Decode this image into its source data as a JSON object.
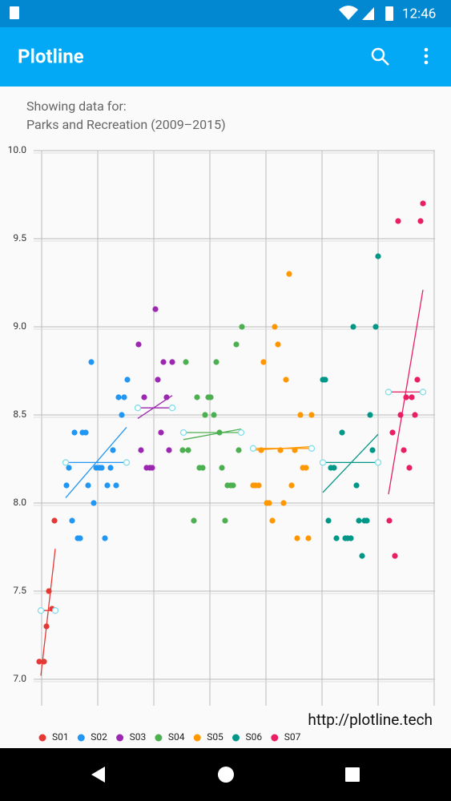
{
  "status_bar": {
    "time": "12:46"
  },
  "app_bar": {
    "title": "Plotline"
  },
  "header": {
    "line1": "Showing data for:",
    "line2": "Parks and Recreation (2009–2015)"
  },
  "watermark": "http://plotline.tech",
  "chart_data": {
    "type": "scatter",
    "xlim": [
      -10,
      491
    ],
    "xticks": [
      0,
      70,
      140,
      210,
      280,
      350,
      420,
      490
    ],
    "ylim": [
      6.85,
      10.0
    ],
    "yticks": [
      {
        "value": 7,
        "label": "7.0"
      },
      {
        "value": 7.5,
        "label": "7.5"
      },
      {
        "value": 8,
        "label": "8.0"
      },
      {
        "value": 8.5,
        "label": "8.5"
      },
      {
        "value": 9,
        "label": "9.0"
      },
      {
        "value": 9.5,
        "label": "9.5"
      },
      {
        "value": 10,
        "label": "10.0"
      }
    ],
    "grid": true,
    "series": [
      {
        "name": "S01",
        "color": "#e53935",
        "x": [
          -3,
          3,
          6,
          9,
          13,
          16
        ],
        "values": [
          7.1,
          7.1,
          7.3,
          7.5,
          7.4,
          7.9
        ],
        "mean": 7.39,
        "trend": [
          7.02,
          7.74
        ],
        "fit_x": [
          -1,
          17
        ]
      },
      {
        "name": "S02",
        "color": "#2196f3",
        "x": [
          31,
          34,
          38,
          41,
          45,
          48,
          51,
          55,
          58,
          62,
          65,
          68,
          72,
          75,
          79,
          82,
          86,
          89,
          93,
          96,
          100,
          103,
          107
        ],
        "values": [
          8.1,
          8.2,
          7.9,
          8.4,
          7.8,
          7.8,
          8.4,
          8.4,
          8.1,
          8.8,
          8.0,
          8.2,
          8.2,
          8.2,
          7.8,
          8.1,
          8.2,
          8.3,
          8.1,
          8.6,
          8.5,
          8.6,
          8.7
        ],
        "mean": 8.23,
        "trend": [
          8.03,
          8.43
        ],
        "fit_x": [
          30,
          106
        ]
      },
      {
        "name": "S03",
        "color": "#9c27b0",
        "x": [
          121,
          124,
          128,
          131,
          135,
          138,
          142,
          145,
          149,
          152,
          156,
          159,
          163
        ],
        "values": [
          8.9,
          8.3,
          8.6,
          8.2,
          8.2,
          8.2,
          9.1,
          8.7,
          8.4,
          8.8,
          8.6,
          8.3,
          8.8
        ],
        "mean": 8.54,
        "trend": [
          8.48,
          8.61
        ],
        "fit_x": [
          120,
          163
        ]
      },
      {
        "name": "S04",
        "color": "#4caf50",
        "x": [
          176,
          180,
          183,
          190,
          194,
          197,
          201,
          204,
          208,
          211,
          215,
          218,
          222,
          225,
          229,
          232,
          236,
          239,
          243,
          246,
          250
        ],
        "values": [
          8.3,
          8.8,
          8.3,
          7.9,
          8.6,
          8.2,
          8.2,
          8.5,
          8.6,
          8.6,
          8.5,
          8.8,
          8.4,
          8.2,
          7.9,
          8.1,
          8.1,
          8.1,
          8.9,
          8.3,
          9.0
        ],
        "mean": 8.4,
        "trend": [
          8.36,
          8.42
        ],
        "fit_x": [
          177,
          249
        ]
      },
      {
        "name": "S05",
        "color": "#ff9800",
        "x": [
          264,
          267,
          271,
          274,
          277,
          281,
          284,
          288,
          291,
          295,
          298,
          302,
          305,
          309,
          312,
          316,
          319,
          323,
          326,
          330,
          333,
          337
        ],
        "values": [
          8.1,
          8.1,
          8.1,
          8.3,
          8.8,
          8.0,
          8.0,
          7.9,
          9.0,
          8.9,
          8.3,
          8.0,
          8.7,
          9.3,
          8.1,
          8.3,
          7.8,
          8.5,
          8.2,
          8.2,
          7.8,
          8.5
        ],
        "mean": 8.31,
        "trend": [
          8.3,
          8.32
        ],
        "fit_x": [
          264,
          337
        ]
      },
      {
        "name": "S06",
        "color": "#009688",
        "x": [
          351,
          354,
          358,
          361,
          365,
          368,
          375,
          379,
          382,
          386,
          389,
          393,
          396,
          400,
          403,
          406,
          410,
          413,
          417,
          420
        ],
        "values": [
          8.7,
          8.7,
          7.9,
          8.2,
          8.2,
          7.8,
          8.4,
          7.8,
          7.8,
          7.8,
          9.0,
          8.1,
          7.9,
          7.7,
          7.9,
          7.9,
          8.5,
          8.3,
          9.0,
          9.4
        ],
        "mean": 8.23,
        "trend": [
          8.06,
          8.39
        ],
        "fit_x": [
          351,
          420
        ]
      },
      {
        "name": "S07",
        "color": "#e91e63",
        "x": [
          434,
          438,
          441,
          445,
          448,
          452,
          455,
          459,
          462,
          466,
          469,
          473,
          476
        ],
        "values": [
          7.9,
          8.4,
          7.7,
          9.6,
          8.5,
          8.3,
          8.6,
          8.2,
          8.6,
          8.5,
          8.7,
          9.6,
          9.7
        ],
        "mean": 8.63,
        "trend": [
          8.05,
          9.21
        ],
        "fit_x": [
          433,
          476
        ]
      }
    ]
  }
}
